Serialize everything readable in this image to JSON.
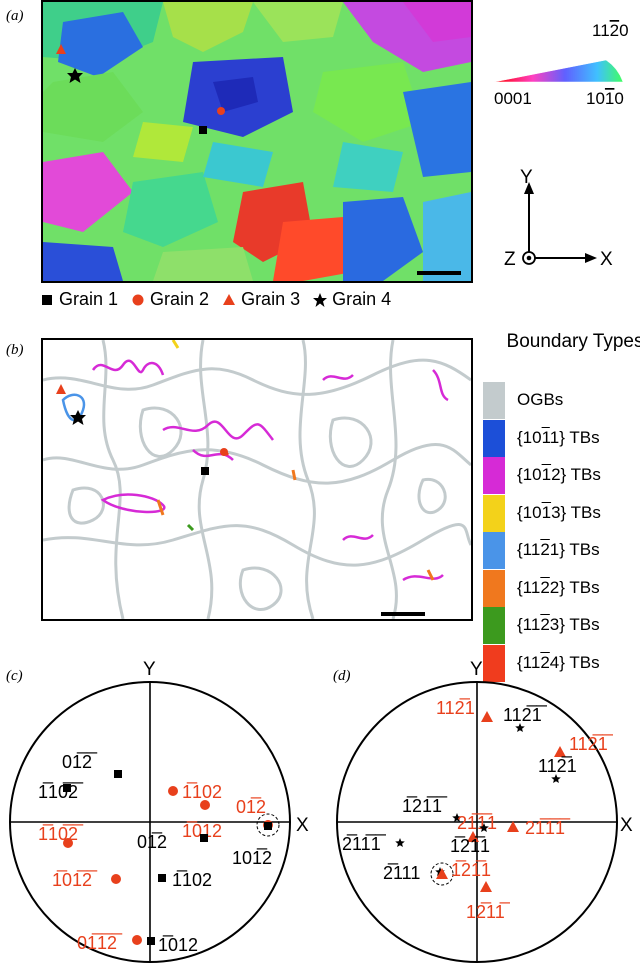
{
  "panels": {
    "a": "(a)",
    "b": "(b)",
    "c": "(c)",
    "d": "(d)"
  },
  "ipf_key": {
    "top": "11",
    "top_bar": "2",
    "top_end": "0",
    "left": "0001",
    "right_a": "10",
    "right_bar": "1",
    "right_b": "0"
  },
  "axes": {
    "x": "X",
    "y": "Y",
    "z": "Z"
  },
  "grain_legend": [
    {
      "label": "Grain 1",
      "marker": "square",
      "color": "#000000"
    },
    {
      "label": "Grain 2",
      "marker": "circle",
      "color": "#e8401c"
    },
    {
      "label": "Grain 3",
      "marker": "triangle",
      "color": "#e8401c"
    },
    {
      "label": "Grain 4",
      "marker": "star",
      "color": "#000000"
    }
  ],
  "boundary_legend": {
    "title": "Boundary Types",
    "items": [
      {
        "pre": "OGBs",
        "bar": "",
        "post": "",
        "color": "#c3cbcd"
      },
      {
        "pre": "{10",
        "bar": "1",
        "post": "1} TBs",
        "color": "#1c4fd8"
      },
      {
        "pre": "{10",
        "bar": "1",
        "post": "2} TBs",
        "color": "#d62ad6"
      },
      {
        "pre": "{10",
        "bar": "1",
        "post": "3} TBs",
        "color": "#f3d21a"
      },
      {
        "pre": "{11",
        "bar": "2",
        "post": "1} TBs",
        "color": "#4a94e8"
      },
      {
        "pre": "{11",
        "bar": "2",
        "post": "2} TBs",
        "color": "#f0781e"
      },
      {
        "pre": "{11",
        "bar": "2",
        "post": "3} TBs",
        "color": "#3c9a1e"
      },
      {
        "pre": "{11",
        "bar": "2",
        "post": "4} TBs",
        "color": "#f03c1e"
      }
    ]
  },
  "pole_c": [
    {
      "t": "01̅2̅",
      "c": "black"
    },
    {
      "t": "1̅10̅2̅",
      "c": "black"
    },
    {
      "t": "1̅102",
      "c": "red"
    },
    {
      "t": "1̅012",
      "c": "red"
    },
    {
      "t": "01̅2",
      "c": "red"
    },
    {
      "t": "1̅10̅2̅",
      "c": "red"
    },
    {
      "t": "01̅2",
      "c": "black"
    },
    {
      "t": "101̅2",
      "c": "black"
    },
    {
      "t": "1̅01̅2̅",
      "c": "red"
    },
    {
      "t": "1̅102",
      "c": "black"
    },
    {
      "t": "01̅1̅2̅",
      "c": "red"
    },
    {
      "t": "1̅012",
      "c": "black"
    }
  ],
  "pole_d": [
    {
      "t": "112̅1",
      "c": "red"
    },
    {
      "t": "112̅1̅",
      "c": "black"
    },
    {
      "t": "112̅1̅",
      "c": "red"
    },
    {
      "t": "112̅1",
      "c": "black"
    },
    {
      "t": "1̅21̅1̅",
      "c": "black"
    },
    {
      "t": "21̅1̅1",
      "c": "red"
    },
    {
      "t": "21̅1̅1̅",
      "c": "red"
    },
    {
      "t": "2̅11̅1̅",
      "c": "black"
    },
    {
      "t": "1̅21̅1",
      "c": "black"
    },
    {
      "t": "2̅111",
      "c": "black"
    },
    {
      "t": "1̅21̅1",
      "c": "red"
    },
    {
      "t": "12̅11̅",
      "c": "red"
    }
  ]
}
